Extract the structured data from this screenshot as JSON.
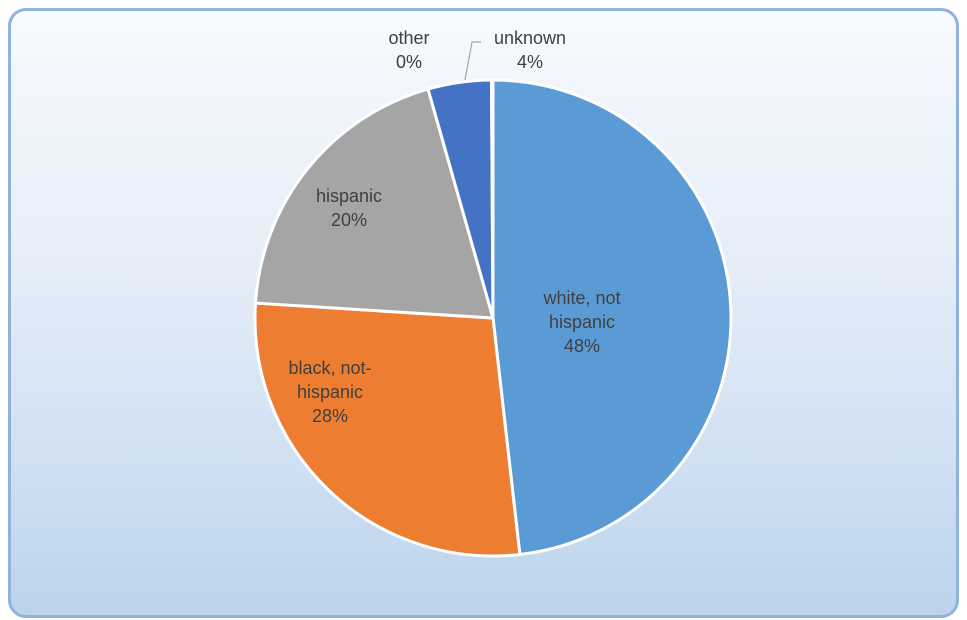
{
  "chart_data": {
    "type": "pie",
    "title": "",
    "slices": [
      {
        "name": "white, not hispanic",
        "label_lines": [
          "white, not",
          "hispanic"
        ],
        "percent_label": "48%",
        "value": 48.2,
        "color": "#5b9bd5"
      },
      {
        "name": "black, not-hispanic",
        "label_lines": [
          "black, not-",
          "hispanic"
        ],
        "percent_label": "28%",
        "value": 27.8,
        "color": "#ed7d31"
      },
      {
        "name": "hispanic",
        "label_lines": [
          "hispanic"
        ],
        "percent_label": "20%",
        "value": 19.6,
        "color": "#a5a5a5"
      },
      {
        "name": "unknown",
        "label_lines": [
          "unknown"
        ],
        "percent_label": "4%",
        "value": 4.3,
        "color": "#4472c4"
      },
      {
        "name": "other",
        "label_lines": [
          "other"
        ],
        "percent_label": "0%",
        "value": 0.1,
        "color": "#ffc000"
      }
    ]
  }
}
